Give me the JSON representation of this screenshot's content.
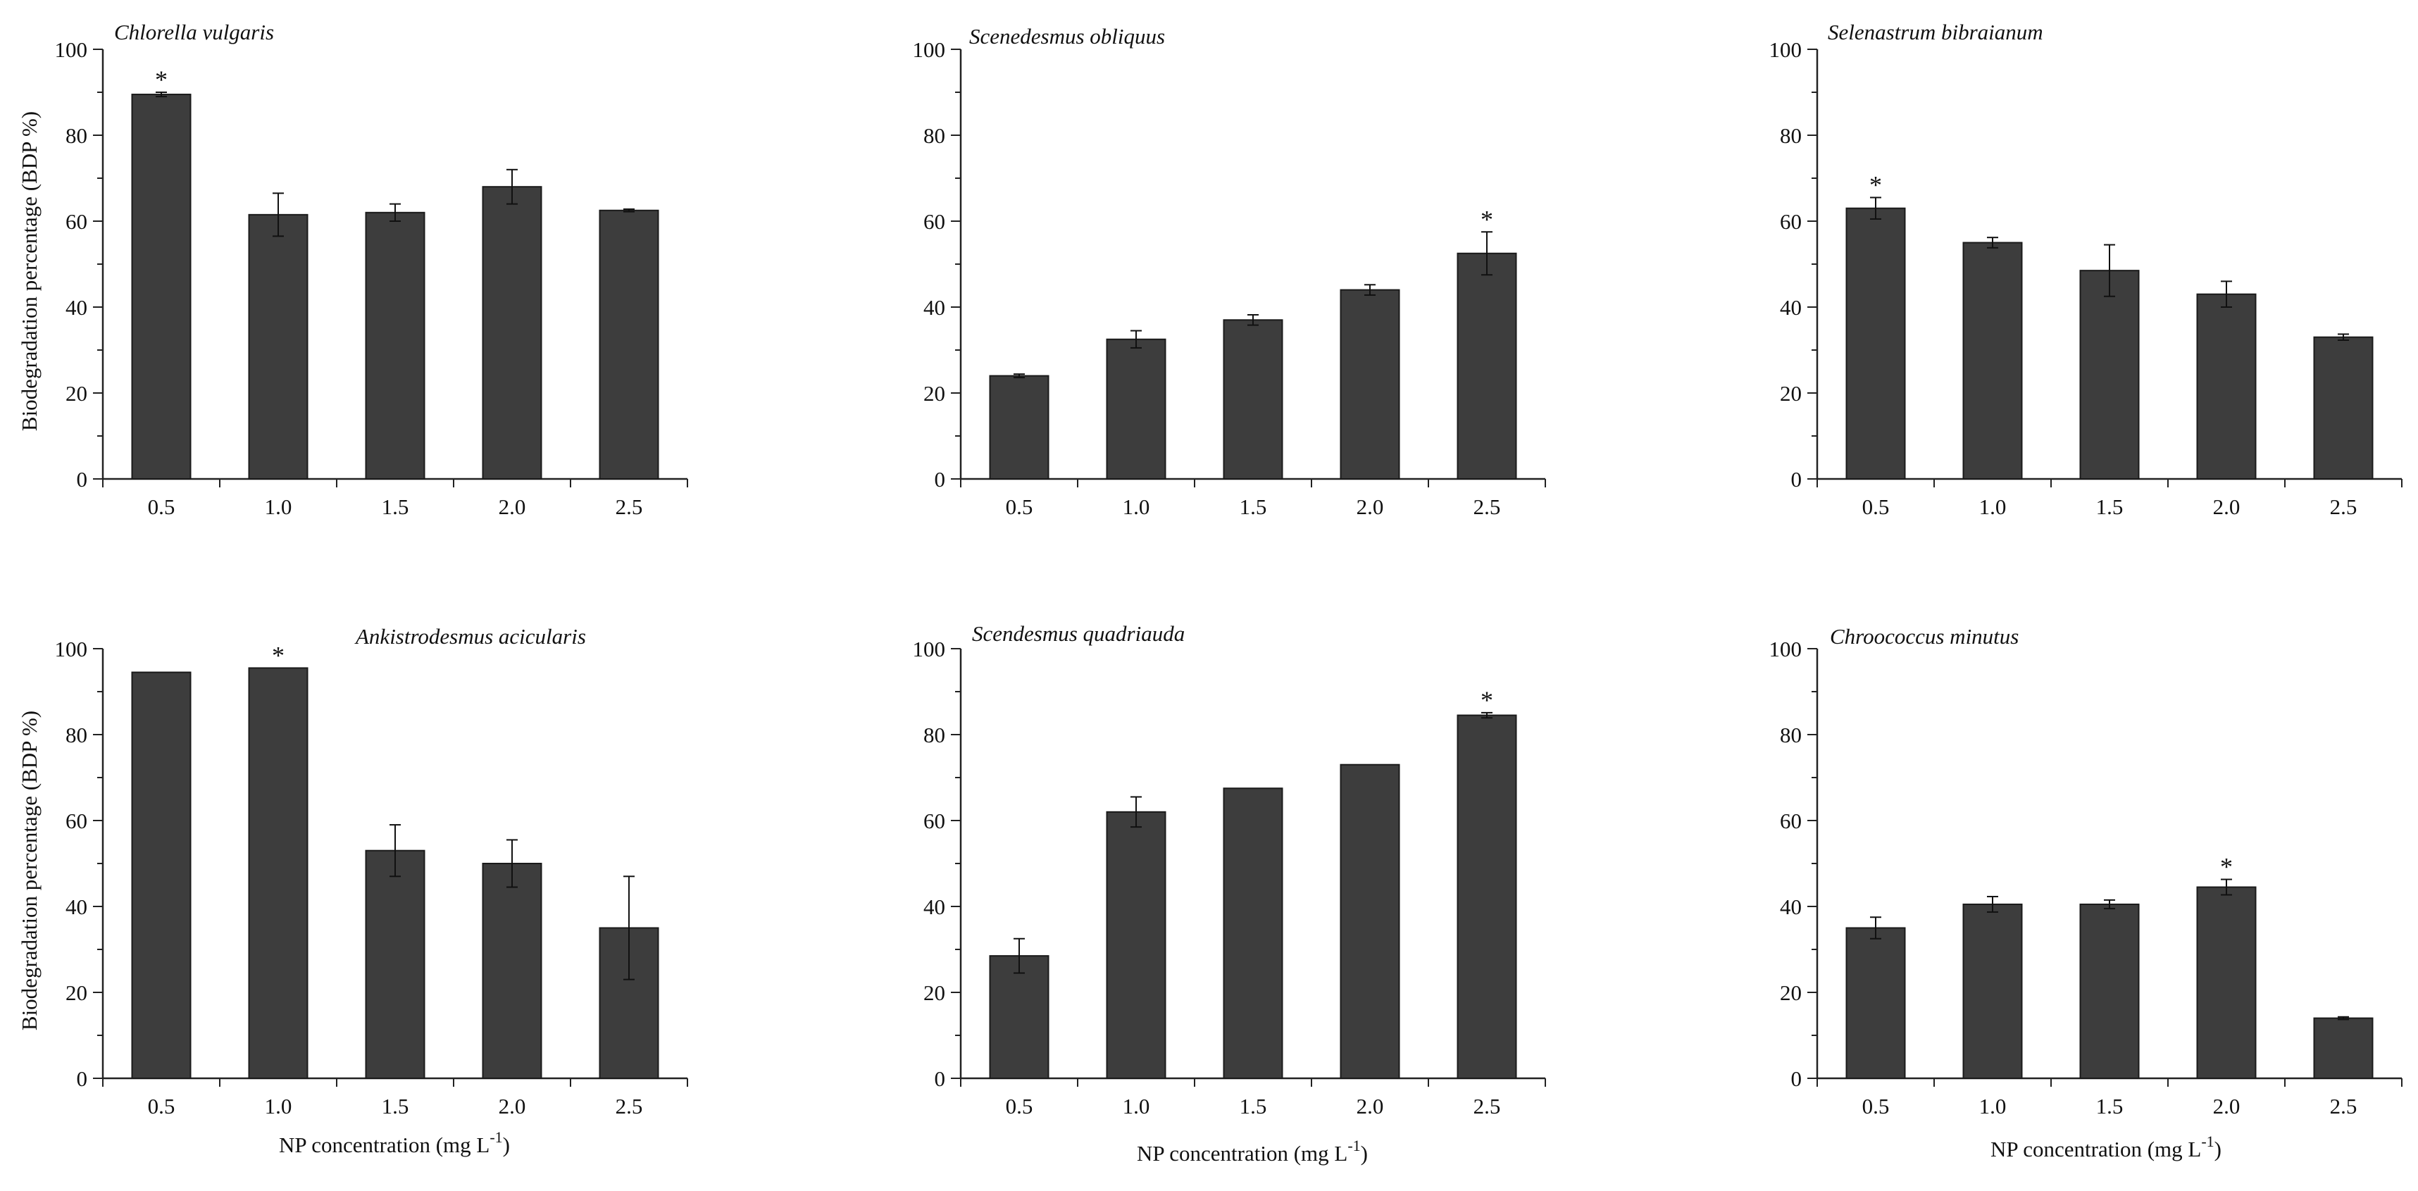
{
  "figure": {
    "ylabel": "Biodegradation percentage (BDP %)",
    "xlabel_main": "NP concentration (mg L",
    "xlabel_sup": "-1",
    "xlabel_close": ")"
  },
  "chart_data": [
    {
      "type": "bar",
      "title": "Chlorella vulgaris",
      "categories": [
        "0.5",
        "1.0",
        "1.5",
        "2.0",
        "2.5"
      ],
      "values": [
        89.5,
        61.5,
        62,
        68,
        62.5
      ],
      "errors": [
        0.5,
        5,
        2,
        4,
        0.3
      ],
      "significant": [
        true,
        false,
        false,
        false,
        false
      ],
      "ylabel": "Biodegradation percentage (BDP %)",
      "xlabel": "",
      "ylim": [
        0,
        100
      ],
      "yticks": [
        "0",
        "20",
        "40",
        "60",
        "80",
        "100"
      ],
      "bar_color": "#3d3d3d"
    },
    {
      "type": "bar",
      "title": "Scenedesmus obliquus",
      "categories": [
        "0.5",
        "1.0",
        "1.5",
        "2.0",
        "2.5"
      ],
      "values": [
        24,
        32.5,
        37,
        44,
        52.5
      ],
      "errors": [
        0.4,
        2,
        1.2,
        1.2,
        5
      ],
      "significant": [
        false,
        false,
        false,
        false,
        true
      ],
      "ylabel": "",
      "xlabel": "",
      "ylim": [
        0,
        100
      ],
      "yticks": [
        "0",
        "20",
        "40",
        "60",
        "80",
        "100"
      ],
      "bar_color": "#3d3d3d"
    },
    {
      "type": "bar",
      "title": "Selenastrum bibraianum",
      "categories": [
        "0.5",
        "1.0",
        "1.5",
        "2.0",
        "2.5"
      ],
      "values": [
        63,
        55,
        48.5,
        43,
        33
      ],
      "errors": [
        2.5,
        1.2,
        6,
        3,
        0.7
      ],
      "significant": [
        true,
        false,
        false,
        false,
        false
      ],
      "ylabel": "",
      "xlabel": "",
      "ylim": [
        0,
        100
      ],
      "yticks": [
        "0",
        "20",
        "40",
        "60",
        "80",
        "100"
      ],
      "bar_color": "#3d3d3d"
    },
    {
      "type": "bar",
      "title": "Ankistrodesmus acicularis",
      "categories": [
        "0.5",
        "1.0",
        "1.5",
        "2.0",
        "2.5"
      ],
      "values": [
        94.5,
        95.5,
        53,
        50,
        35
      ],
      "errors": [
        0,
        0,
        6,
        5.5,
        12
      ],
      "significant": [
        false,
        true,
        false,
        false,
        false
      ],
      "ylabel": "Biodegradation percentage (BDP %)",
      "xlabel": "NP concentration (mg L-1)",
      "ylim": [
        0,
        100
      ],
      "yticks": [
        "0",
        "20",
        "40",
        "60",
        "80",
        "100"
      ],
      "bar_color": "#3d3d3d"
    },
    {
      "type": "bar",
      "title": "Scendesmus quadriauda",
      "categories": [
        "0.5",
        "1.0",
        "1.5",
        "2.0",
        "2.5"
      ],
      "values": [
        28.5,
        62,
        67.5,
        73,
        84.5
      ],
      "errors": [
        4,
        3.5,
        0,
        0,
        0.6
      ],
      "significant": [
        false,
        false,
        false,
        false,
        true
      ],
      "ylabel": "",
      "xlabel": "NP concentration (mg L-1)",
      "ylim": [
        0,
        100
      ],
      "yticks": [
        "0",
        "20",
        "40",
        "60",
        "80",
        "100"
      ],
      "bar_color": "#3d3d3d"
    },
    {
      "type": "bar",
      "title": "Chroococcus minutus",
      "categories": [
        "0.5",
        "1.0",
        "1.5",
        "2.0",
        "2.5"
      ],
      "values": [
        35,
        40.5,
        40.5,
        44.5,
        14
      ],
      "errors": [
        2.5,
        1.8,
        1,
        1.8,
        0.3
      ],
      "significant": [
        false,
        false,
        false,
        true,
        false
      ],
      "ylabel": "",
      "xlabel": "NP concentration (mg L-1)",
      "ylim": [
        0,
        100
      ],
      "yticks": [
        "0",
        "20",
        "40",
        "60",
        "80",
        "100"
      ],
      "bar_color": "#3d3d3d"
    }
  ]
}
